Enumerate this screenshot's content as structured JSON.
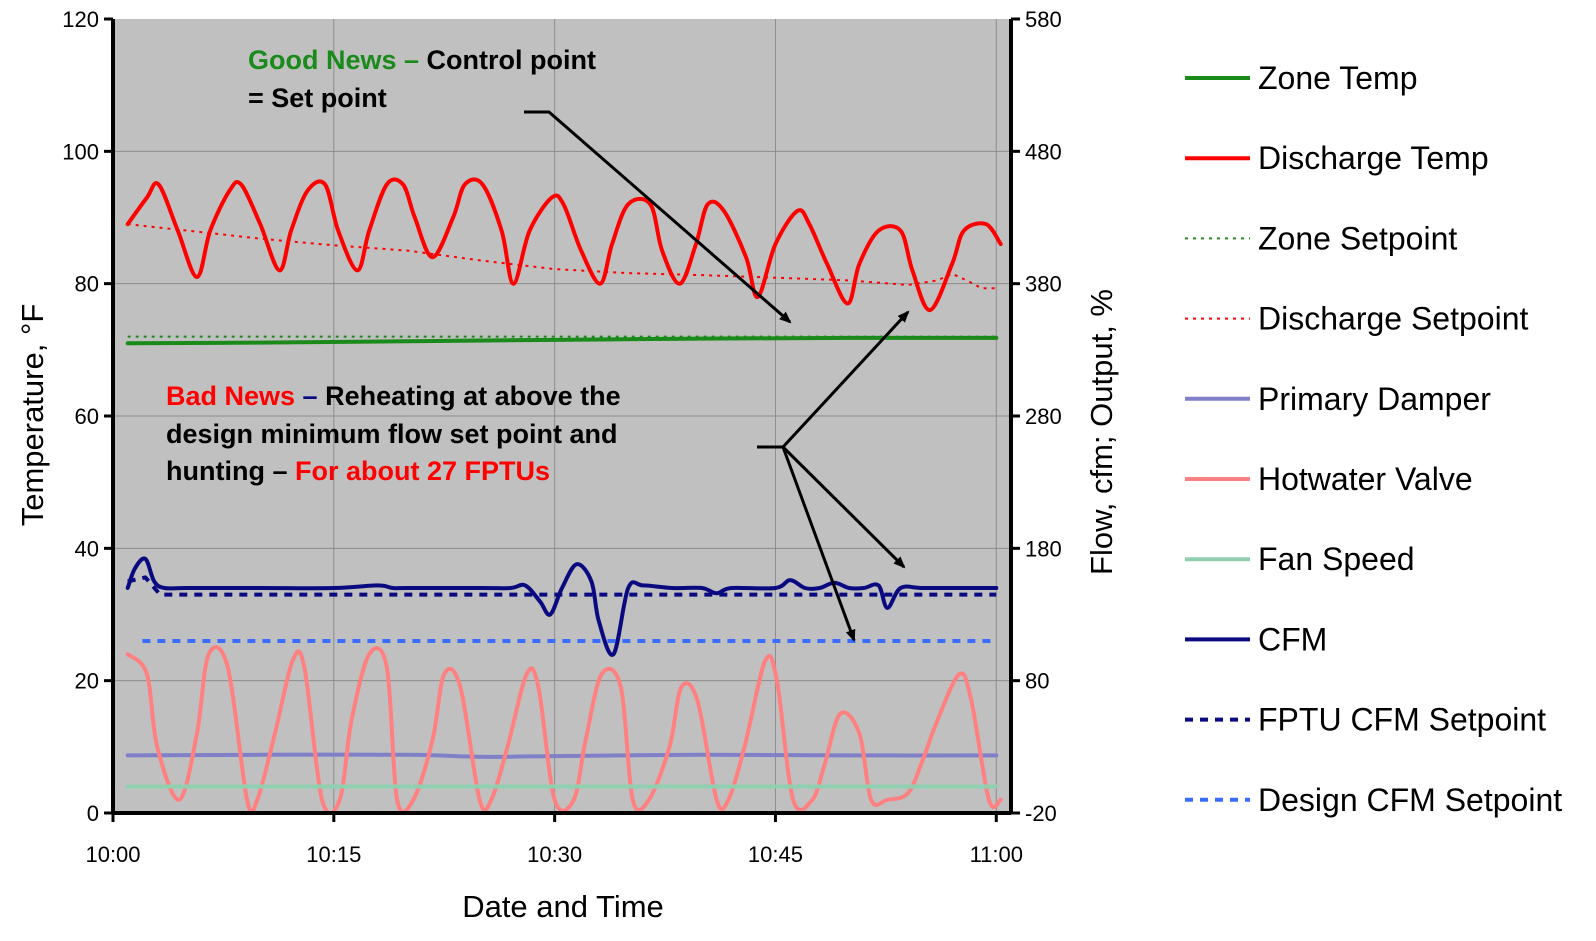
{
  "colors": {
    "plot_bg": "#c0c0c0",
    "grid": "#8c8c8c",
    "green": "#1a8a1a",
    "red": "#ff0000",
    "navy": "#0a0a80",
    "blue": "#3a6cff",
    "pink": "#ff8080",
    "lavender": "#8080c8",
    "mint": "#90d0b0",
    "black": "#000000"
  },
  "chart_data": {
    "type": "line",
    "xlabel": "Date and Time",
    "ylabel": "Temperature, °F",
    "y2label": "Flow, cfm; Output, %",
    "xlim": [
      0,
      61
    ],
    "ylim": [
      0,
      120
    ],
    "y2lim": [
      -20,
      580
    ],
    "x_ticks": [
      {
        "value": 0,
        "label": "10:00"
      },
      {
        "value": 15,
        "label": "10:15"
      },
      {
        "value": 30,
        "label": "10:30"
      },
      {
        "value": 45,
        "label": "10:45"
      },
      {
        "value": 60,
        "label": "11:00"
      }
    ],
    "y_ticks": [
      0,
      20,
      40,
      60,
      80,
      100,
      120
    ],
    "y2_ticks": [
      -20,
      80,
      180,
      280,
      380,
      480,
      580
    ],
    "grid": true,
    "legend_position": "right",
    "series": [
      {
        "name": "Zone Temp",
        "axis": "left",
        "style": "solid",
        "color": "#1a8a1a",
        "x": [
          1,
          10,
          20,
          30,
          40,
          50,
          60
        ],
        "y": [
          71.0,
          71.1,
          71.3,
          71.5,
          71.7,
          71.8,
          71.8
        ]
      },
      {
        "name": "Discharge Temp",
        "axis": "left",
        "style": "solid",
        "color": "#ff0000",
        "x": [
          1.0,
          2.3,
          3.1,
          4.4,
          5.7,
          6.6,
          7.9,
          8.7,
          10.0,
          11.3,
          12.1,
          13.2,
          14.4,
          15.3,
          16.6,
          17.4,
          18.6,
          19.7,
          20.5,
          21.7,
          23.1,
          23.9,
          25.1,
          26.4,
          27.2,
          28.3,
          29.8,
          30.6,
          31.8,
          33.1,
          33.9,
          35.0,
          36.5,
          37.3,
          38.5,
          39.6,
          40.4,
          41.5,
          43.0,
          43.8,
          45.0,
          46.5,
          47.3,
          48.5,
          49.9,
          50.7,
          52.0,
          53.5,
          54.3,
          55.5,
          57.0,
          57.8,
          59.3,
          60.3
        ],
        "y": [
          89,
          93,
          95,
          88,
          81,
          88,
          94,
          95,
          89,
          82,
          88,
          94,
          95,
          88,
          82,
          88,
          95,
          95,
          90,
          84,
          90,
          95,
          95,
          88,
          80,
          88,
          93,
          92,
          85,
          80,
          86,
          92,
          92,
          85,
          80,
          86,
          92,
          91,
          84,
          78,
          86,
          91,
          89,
          83,
          77,
          83,
          88,
          88,
          82,
          76,
          83,
          88,
          89,
          86
        ]
      },
      {
        "name": "Zone Setpoint",
        "axis": "left",
        "style": "dotted",
        "color": "#1a8a1a",
        "x": [
          1,
          60
        ],
        "y": [
          72,
          72
        ]
      },
      {
        "name": "Discharge Setpoint",
        "axis": "left",
        "style": "dotted",
        "color": "#ff0000",
        "x": [
          1,
          3,
          6,
          10,
          15,
          20,
          25,
          30,
          35,
          40,
          45,
          50,
          54,
          56,
          57,
          58,
          59,
          60
        ],
        "y": [
          89,
          88.5,
          87.8,
          86.8,
          85.8,
          85.0,
          83.5,
          82.2,
          81.6,
          81.3,
          80.9,
          80.5,
          79.8,
          80.5,
          81.5,
          80.5,
          79.3,
          79.3
        ]
      },
      {
        "name": "Primary Damper",
        "axis": "left",
        "style": "solid",
        "color": "#8080c8",
        "x": [
          1,
          10,
          20,
          25,
          30,
          40,
          50,
          60
        ],
        "y": [
          8.7,
          8.8,
          8.8,
          8.5,
          8.6,
          8.8,
          8.7,
          8.7
        ]
      },
      {
        "name": "Hotwater Valve",
        "axis": "left",
        "style": "solid",
        "color": "#ff8080",
        "x": [
          1.0,
          2.3,
          3.0,
          4.5,
          5.7,
          6.5,
          7.8,
          9.1,
          9.8,
          11.0,
          12.2,
          13.0,
          14.2,
          15.4,
          16.2,
          17.4,
          18.6,
          19.3,
          20.4,
          21.7,
          22.5,
          23.6,
          24.9,
          25.7,
          26.8,
          28.1,
          28.9,
          30.0,
          31.3,
          32.1,
          33.2,
          34.5,
          35.3,
          36.4,
          37.8,
          38.6,
          39.7,
          41.0,
          41.8,
          42.9,
          44.3,
          45.1,
          46.2,
          47.5,
          48.3,
          49.4,
          50.7,
          51.5,
          52.6,
          54.0,
          55.0,
          56.0,
          57.5,
          58.3,
          59.5,
          60.3
        ],
        "y": [
          24,
          21,
          10,
          2,
          12,
          24,
          22,
          2,
          2,
          12,
          23,
          22,
          2,
          2,
          14,
          24,
          22,
          2,
          2,
          11,
          21,
          19,
          2,
          2,
          10,
          21,
          19,
          2,
          2,
          11,
          21,
          19,
          2,
          2,
          10,
          19,
          17,
          2,
          2,
          10,
          23,
          20,
          2,
          2,
          7,
          15,
          12,
          2,
          2,
          3,
          8,
          14,
          21,
          17,
          2,
          2
        ]
      },
      {
        "name": "Fan Speed",
        "axis": "left",
        "style": "solid",
        "color": "#90d0b0",
        "x": [
          1,
          60
        ],
        "y": [
          4,
          4
        ]
      },
      {
        "name": "CFM",
        "axis": "right",
        "style": "solid",
        "color": "#0a0a80",
        "x": [
          1.0,
          1.5,
          2.2,
          2.8,
          3.5,
          5,
          10,
          15,
          18,
          19,
          20,
          25,
          27,
          28,
          29,
          29.7,
          30.5,
          31.5,
          32.5,
          33.0,
          34.0,
          35.0,
          36,
          38,
          40,
          41,
          42,
          45,
          46,
          47,
          48,
          49,
          50,
          51,
          52,
          52.6,
          53.5,
          55,
          58,
          60
        ],
        "y": [
          150,
          165,
          172,
          155,
          150,
          150,
          150,
          150,
          152,
          150,
          150,
          150,
          150,
          152,
          140,
          130,
          150,
          168,
          155,
          125,
          100,
          150,
          152,
          150,
          150,
          146,
          150,
          150,
          156,
          150,
          150,
          154,
          150,
          150,
          152,
          135,
          150,
          150,
          150,
          150
        ]
      },
      {
        "name": "FPTU CFM Setpoint",
        "axis": "right",
        "style": "dashed",
        "color": "#0a0a80",
        "x": [
          1,
          2.2,
          3.2,
          60
        ],
        "y": [
          155,
          158,
          145,
          145
        ]
      },
      {
        "name": "Design CFM Setpoint",
        "axis": "right",
        "style": "dashed",
        "color": "#3a6cff",
        "x": [
          2,
          60
        ],
        "y": [
          110,
          110
        ]
      }
    ]
  },
  "annotations": {
    "good_prefix": "Good News –",
    "good_rest": " Control point",
    "good_line2": "= Set point",
    "bad_prefix": "Bad News",
    "bad_dash": " –",
    "bad_rest": " Reheating at above the",
    "bad_line2": "design minimum flow set point and",
    "bad_line3a": "hunting –",
    "bad_line3b": " For about 27 FPTUs"
  }
}
